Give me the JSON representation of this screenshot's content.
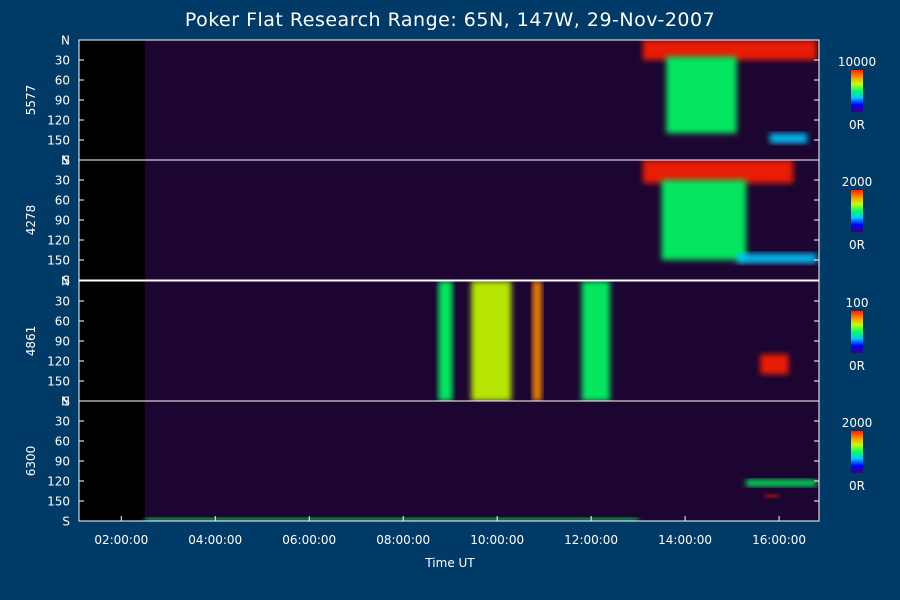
{
  "chart_data": {
    "type": "heatmap",
    "title": "Poker Flat Research Range: 65N, 147W, 29-Nov-2007",
    "xlabel": "Time UT",
    "x_tick_labels": [
      "02:00:00",
      "04:00:00",
      "06:00:00",
      "08:00:00",
      "10:00:00",
      "12:00:00",
      "14:00:00",
      "16:00:00"
    ],
    "x_ticks_hours": [
      2,
      4,
      6,
      8,
      10,
      12,
      14,
      16
    ],
    "xlim_hours": [
      1.1,
      16.85
    ],
    "data_start_hours": 2.5,
    "y_tick_labels": [
      "N",
      "30",
      "60",
      "90",
      "120",
      "150",
      "S"
    ],
    "y_tick_values": [
      0,
      30,
      60,
      90,
      120,
      150,
      180
    ],
    "ylim": [
      0,
      180
    ],
    "colorscale": [
      "#3c0078",
      "#0000ff",
      "#00c8ff",
      "#00ff64",
      "#c8ff00",
      "#ff8c00",
      "#ff1e00"
    ],
    "background_color": "#003a66",
    "panels": [
      {
        "name": "5577",
        "colorbar_max_label": "10000",
        "colorbar_min_label": "0R",
        "features": [
          {
            "t0": 13.1,
            "t1": 16.8,
            "y0": 0,
            "y1": 30,
            "intensity": 1.0
          },
          {
            "t0": 13.6,
            "t1": 15.1,
            "y0": 25,
            "y1": 140,
            "intensity": 0.55
          },
          {
            "t0": 15.8,
            "t1": 16.6,
            "y0": 140,
            "y1": 155,
            "intensity": 0.4
          }
        ]
      },
      {
        "name": "4278",
        "colorbar_max_label": "2000",
        "colorbar_min_label": "0R",
        "features": [
          {
            "t0": 13.1,
            "t1": 16.3,
            "y0": 0,
            "y1": 35,
            "intensity": 1.0
          },
          {
            "t0": 13.5,
            "t1": 15.3,
            "y0": 30,
            "y1": 150,
            "intensity": 0.55
          },
          {
            "t0": 15.1,
            "t1": 16.8,
            "y0": 140,
            "y1": 155,
            "intensity": 0.3
          }
        ]
      },
      {
        "name": "4861",
        "colorbar_max_label": "100",
        "colorbar_min_label": "0R",
        "features": [
          {
            "t0": 8.75,
            "t1": 9.05,
            "y0": 0,
            "y1": 180,
            "intensity": 0.55
          },
          {
            "t0": 9.45,
            "t1": 10.3,
            "y0": 0,
            "y1": 180,
            "intensity": 0.6
          },
          {
            "t0": 10.75,
            "t1": 10.95,
            "y0": 0,
            "y1": 180,
            "intensity": 0.85
          },
          {
            "t0": 11.8,
            "t1": 12.4,
            "y0": 0,
            "y1": 180,
            "intensity": 0.45
          },
          {
            "t0": 15.6,
            "t1": 16.2,
            "y0": 110,
            "y1": 140,
            "intensity": 0.95
          }
        ]
      },
      {
        "name": "6300",
        "colorbar_max_label": "2000",
        "colorbar_min_label": "0R",
        "features": [
          {
            "t0": 2.5,
            "t1": 13.0,
            "y0": 175,
            "y1": 180,
            "intensity": 0.45
          },
          {
            "t0": 15.3,
            "t1": 16.8,
            "y0": 118,
            "y1": 128,
            "intensity": 0.5
          },
          {
            "t0": 15.7,
            "t1": 16.0,
            "y0": 140,
            "y1": 145,
            "intensity": 0.95
          }
        ]
      }
    ]
  }
}
